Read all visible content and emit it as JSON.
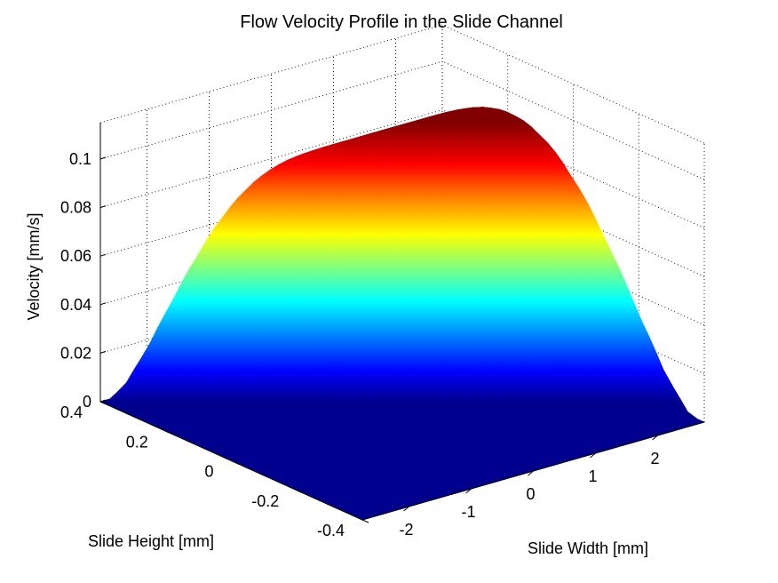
{
  "chart_data": {
    "type": "surface",
    "title": "Flow Velocity Profile in the Slide Channel",
    "xlabel": "Slide Width [mm]",
    "ylabel": "Slide Height [mm]",
    "zlabel": "Velocity [mm/s]",
    "xlim": [
      -2.75,
      2.75
    ],
    "ylim": [
      -0.4,
      0.4
    ],
    "zlim": [
      0,
      0.115
    ],
    "x_ticks": [
      "-2",
      "-1",
      "0",
      "1",
      "2"
    ],
    "x_tick_values": [
      -2,
      -1,
      0,
      1,
      2
    ],
    "y_ticks": [
      "-0.4",
      "-0.2",
      "0",
      "0.2",
      "0.4"
    ],
    "y_tick_values": [
      -0.4,
      -0.2,
      0,
      0.2,
      0.4
    ],
    "z_ticks": [
      "0",
      "0.02",
      "0.04",
      "0.06",
      "0.08",
      "0.1"
    ],
    "z_tick_values": [
      0,
      0.02,
      0.04,
      0.06,
      0.08,
      0.1
    ],
    "surface": "rectangular-channel laminar flow profile: zero at walls, max ~0.115 mm/s at center",
    "max_velocity": 0.115,
    "colormap": "jet",
    "grid": true
  }
}
